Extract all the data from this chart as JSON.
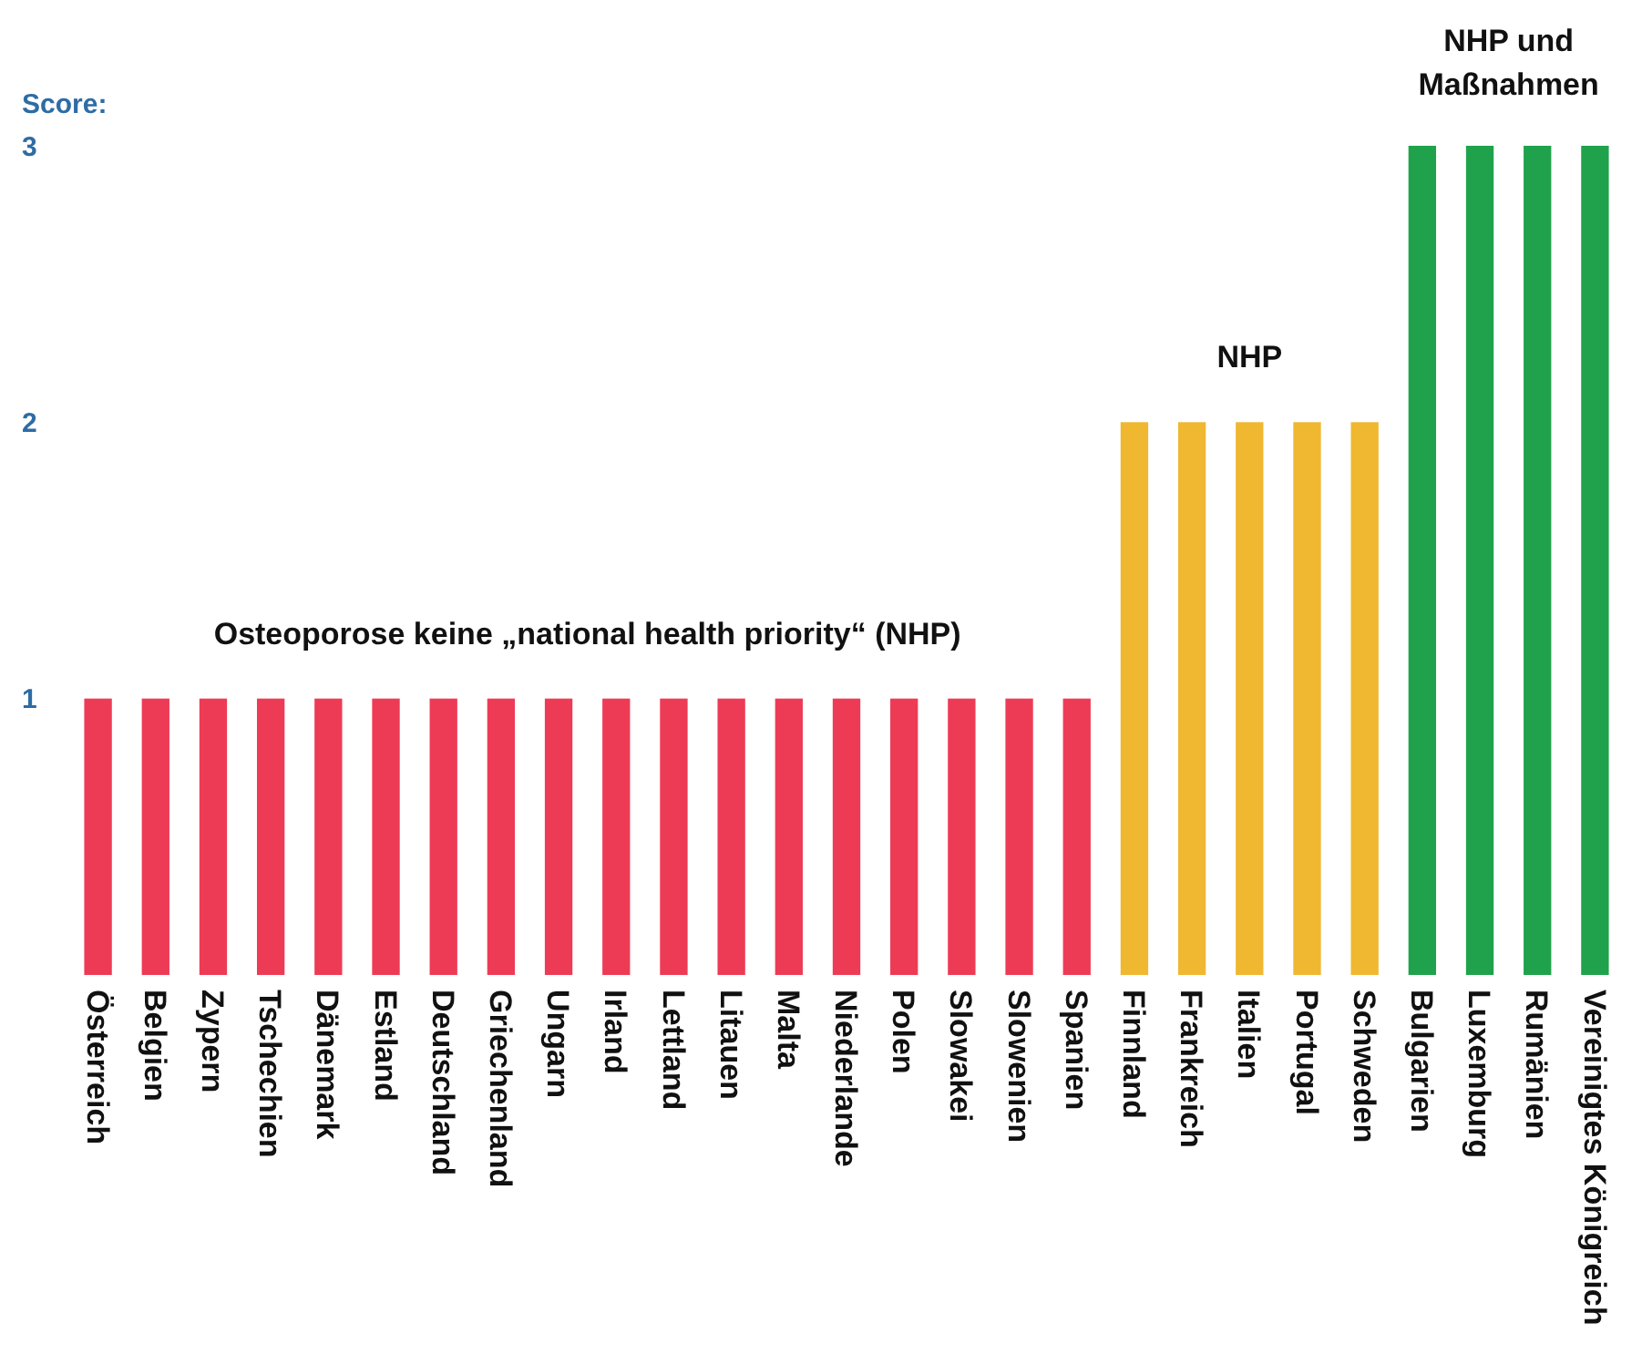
{
  "chart_data": {
    "type": "bar",
    "ylabel": "Score:",
    "categories": [
      "Österreich",
      "Belgien",
      "Zypern",
      "Tschechien",
      "Dänemark",
      "Estland",
      "Deutschland",
      "Griechenland",
      "Ungarn",
      "Irland",
      "Lettland",
      "Litauen",
      "Malta",
      "Niederlande",
      "Polen",
      "Slowakei",
      "Slowenien",
      "Spanien",
      "Finnland",
      "Frankreich",
      "Italien",
      "Portugal",
      "Schweden",
      "Bulgarien",
      "Luxemburg",
      "Rumänien",
      "Vereinigtes Königreich"
    ],
    "values": [
      1,
      1,
      1,
      1,
      1,
      1,
      1,
      1,
      1,
      1,
      1,
      1,
      1,
      1,
      1,
      1,
      1,
      1,
      2,
      2,
      2,
      2,
      2,
      3,
      3,
      3,
      3
    ],
    "colors": [
      "#ee3b55",
      "#ee3b55",
      "#ee3b55",
      "#ee3b55",
      "#ee3b55",
      "#ee3b55",
      "#ee3b55",
      "#ee3b55",
      "#ee3b55",
      "#ee3b55",
      "#ee3b55",
      "#ee3b55",
      "#ee3b55",
      "#ee3b55",
      "#ee3b55",
      "#ee3b55",
      "#ee3b55",
      "#ee3b55",
      "#f0b731",
      "#f0b731",
      "#f0b731",
      "#f0b731",
      "#f0b731",
      "#20a24c",
      "#20a24c",
      "#20a24c",
      "#20a24c"
    ],
    "ylim": [
      0,
      3
    ],
    "yticks": [
      1,
      2,
      3
    ],
    "annotations": [
      "Osteoporose keine „national health priority“ (NHP)",
      "NHP",
      "NHP und\nMaßnahmen"
    ]
  }
}
